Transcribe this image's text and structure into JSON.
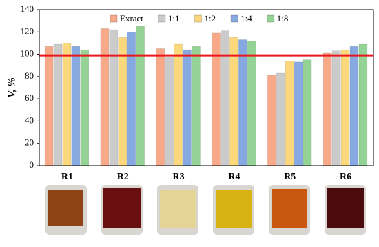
{
  "chart_data": {
    "type": "bar",
    "ylabel": "V, %",
    "categories": [
      "R1",
      "R2",
      "R3",
      "R4",
      "R5",
      "R6"
    ],
    "series": [
      {
        "name": "Exract",
        "color": "#f7a98a",
        "values": [
          107,
          123,
          105,
          119,
          81,
          101
        ]
      },
      {
        "name": "1:1",
        "color": "#cbcbcb",
        "values": [
          109,
          122,
          97,
          121,
          83,
          103
        ]
      },
      {
        "name": "1:2",
        "color": "#fbd87c",
        "values": [
          110,
          115,
          109,
          115,
          94,
          104
        ]
      },
      {
        "name": "1:4",
        "color": "#86a9e2",
        "values": [
          107,
          120,
          104,
          113,
          93,
          107
        ]
      },
      {
        "name": "1:8",
        "color": "#95d295",
        "values": [
          104,
          125,
          107,
          112,
          95,
          109
        ]
      }
    ],
    "reference_line": 99,
    "reference_color": "#e8181c",
    "ylim": [
      0,
      140
    ],
    "yticks": [
      0,
      20,
      40,
      60,
      80,
      100,
      120,
      140
    ]
  }
}
